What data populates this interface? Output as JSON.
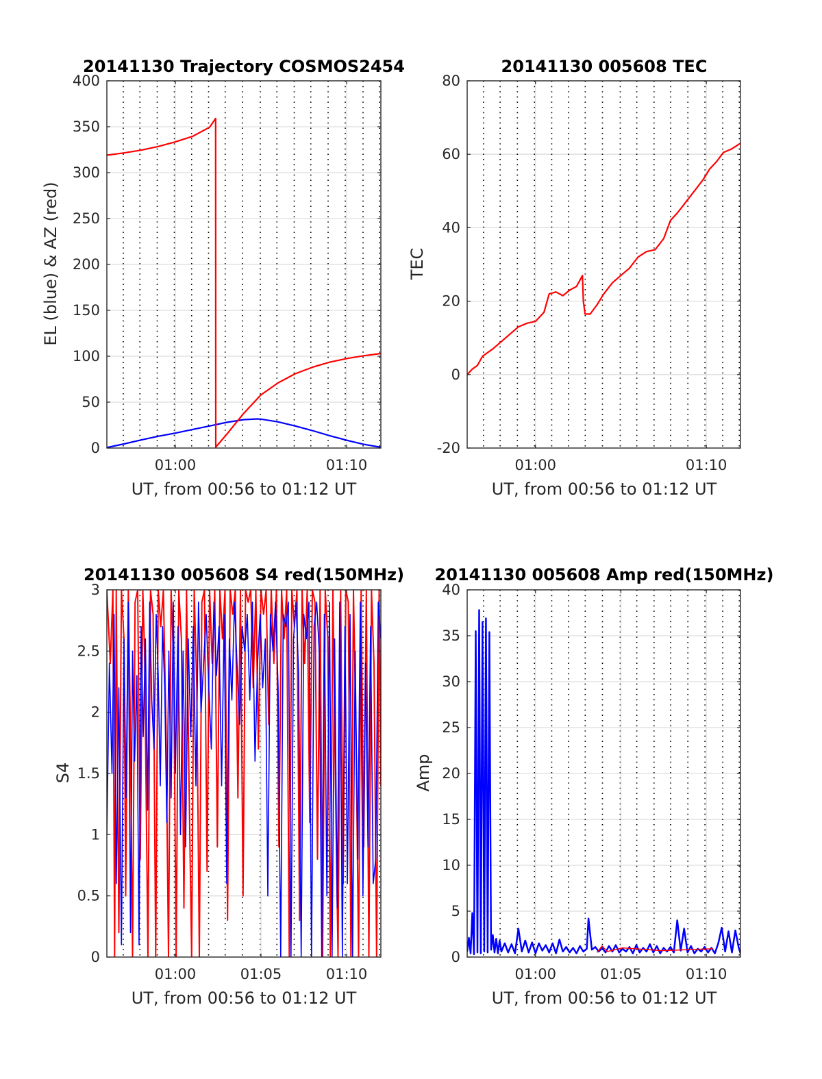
{
  "figure_id": "figure-1",
  "chart_data": [
    {
      "id": "trajectory",
      "type": "line",
      "title": "20141130 Trajectory COSMOS2454",
      "xlabel": "UT, from 00:56 to 01:12 UT",
      "ylabel": "EL (blue) & AZ (red)",
      "x_unit": "minutes after 00:00 UT",
      "xlim": [
        56,
        72
      ],
      "ylim": [
        0,
        400
      ],
      "yticks": [
        0,
        50,
        100,
        150,
        200,
        250,
        300,
        350,
        400
      ],
      "ytick_labels": [
        "0",
        "50",
        "100",
        "150",
        "200",
        "250",
        "300",
        "350",
        "400"
      ],
      "xticks": [
        60,
        70
      ],
      "xtick_labels": [
        "01:00",
        "01:10"
      ],
      "dotted_xgrid": [
        56.96,
        57.93,
        58.94,
        59.94,
        60.95,
        61.94,
        62.91,
        63.92,
        64.96,
        65.93,
        66.94,
        67.91,
        68.92,
        69.92,
        70.96,
        71.93
      ],
      "grid": true,
      "series": [
        {
          "name": "EL (blue)",
          "color": "#0000ff",
          "x": [
            56,
            57,
            58,
            59,
            60,
            61,
            62,
            63,
            64,
            64.8,
            65,
            66,
            67,
            68,
            69,
            70,
            71,
            72
          ],
          "y": [
            0.5,
            4.5,
            8.8,
            12.8,
            16.3,
            20.2,
            24,
            28,
            31,
            31.7,
            31.5,
            28.5,
            24,
            19,
            13.5,
            8.5,
            4,
            0.8
          ]
        },
        {
          "name": "AZ (red)",
          "color": "#ff0000",
          "x": [
            56,
            57,
            58,
            59,
            60,
            61,
            62,
            62.35,
            62.36,
            63,
            64,
            65,
            66,
            67,
            68,
            69,
            70,
            71,
            72
          ],
          "y": [
            319,
            321.5,
            324.5,
            328.5,
            333.5,
            339.5,
            349.5,
            359,
            1,
            15,
            38,
            58,
            71,
            81,
            88,
            93.5,
            97.5,
            100.5,
            103
          ]
        }
      ]
    },
    {
      "id": "tec",
      "type": "line",
      "title": "20141130 005608 TEC",
      "xlabel": "UT, from 00:56 to 01:12 UT",
      "ylabel": "TEC",
      "x_unit": "minutes after 00:00 UT",
      "xlim": [
        56,
        72
      ],
      "ylim": [
        -20,
        80
      ],
      "yticks": [
        -20,
        0,
        20,
        40,
        60,
        80
      ],
      "ytick_labels": [
        "-20",
        "0",
        "20",
        "40",
        "60",
        "80"
      ],
      "xticks": [
        60,
        70
      ],
      "xtick_labels": [
        "01:00",
        "01:10"
      ],
      "dotted_xgrid": [
        56.96,
        57.93,
        58.94,
        59.94,
        60.95,
        61.94,
        62.91,
        63.92,
        64.96,
        65.93,
        66.94,
        67.91,
        68.92,
        69.92,
        70.96,
        71.93
      ],
      "grid": true,
      "series": [
        {
          "name": "TEC",
          "color": "#ff0000",
          "x": [
            56,
            56.3,
            56.6,
            56.9,
            57.5,
            58,
            58.5,
            59,
            59.5,
            60,
            60.5,
            60.8,
            61.2,
            61.6,
            62,
            62.4,
            62.75,
            62.8,
            62.9,
            63.2,
            63.6,
            64,
            64.5,
            65,
            65.5,
            66,
            66.5,
            67,
            67.5,
            67.9,
            68.3,
            68.8,
            69.3,
            69.8,
            70.2,
            70.6,
            71,
            71.5,
            72
          ],
          "y": [
            0,
            1.5,
            2.5,
            5,
            7,
            9,
            11,
            13,
            14,
            14.5,
            17,
            22,
            22.5,
            21.5,
            23,
            24,
            27,
            20,
            16.5,
            16.5,
            19,
            22,
            25,
            27,
            29,
            32,
            33.5,
            34,
            37,
            42,
            44,
            47,
            50,
            53,
            56,
            58,
            60.5,
            61.5,
            63
          ]
        }
      ]
    },
    {
      "id": "s4",
      "type": "line",
      "title": "20141130 005608 S4 red(150MHz)",
      "xlabel": "UT, from 00:56 to 01:12 UT",
      "ylabel": "S4",
      "x_unit": "minutes after 00:00 UT",
      "xlim": [
        56,
        72
      ],
      "ylim": [
        0,
        3
      ],
      "yticks": [
        0,
        0.5,
        1,
        1.5,
        2,
        2.5,
        3
      ],
      "ytick_labels": [
        "0",
        "0.5",
        "1",
        "1.5",
        "2",
        "2.5",
        "3"
      ],
      "xticks": [
        60,
        65,
        70
      ],
      "xtick_labels": [
        "01:00",
        "01:05",
        "01:10"
      ],
      "dotted_xgrid": [
        56.96,
        57.93,
        58.94,
        59.94,
        60.95,
        61.94,
        62.91,
        63.92,
        64.96,
        65.93,
        66.94,
        67.91,
        68.92,
        69.92,
        70.96,
        71.93
      ],
      "grid": true,
      "series": [
        {
          "name": "red (150MHz)",
          "color": "#ff0000",
          "x": [
            56,
            56.2,
            56.35,
            56.45,
            56.55,
            56.7,
            56.85,
            57,
            57.1,
            57.25,
            57.35,
            57.5,
            57.65,
            57.8,
            57.95,
            58.1,
            58.2,
            58.4,
            58.55,
            58.7,
            58.85,
            59,
            59.15,
            59.3,
            59.45,
            59.6,
            59.75,
            59.9,
            60.05,
            60.2,
            60.35,
            60.5,
            60.65,
            60.8,
            60.95,
            61.1,
            61.25,
            61.4,
            61.55,
            61.7,
            61.85,
            62,
            62.15,
            62.3,
            62.45,
            62.6,
            62.75,
            62.9,
            63.05,
            63.2,
            63.35,
            63.5,
            63.65,
            63.8,
            63.95,
            64.1,
            64.25,
            64.4,
            64.55,
            64.7,
            64.85,
            65,
            65.15,
            65.3,
            65.45,
            65.6,
            65.75,
            65.9,
            66.05,
            66.2,
            66.35,
            66.5,
            66.65,
            66.8,
            66.95,
            67.1,
            67.25,
            67.4,
            67.55,
            67.7,
            67.85,
            68,
            68.15,
            68.3,
            68.45,
            68.6,
            68.75,
            68.9,
            69.05,
            69.2,
            69.35,
            69.5,
            69.65,
            69.8,
            69.95,
            70.1,
            70.25,
            70.4,
            70.55,
            70.7,
            70.85,
            71,
            71.15,
            71.3,
            71.45,
            71.6,
            71.75,
            71.9,
            72
          ],
          "y": [
            3,
            2.4,
            3,
            0,
            3,
            0.2,
            3,
            2.6,
            0.5,
            3,
            2.1,
            0,
            2.9,
            3,
            0.8,
            3,
            2.5,
            0,
            3,
            2.8,
            0,
            3,
            2.7,
            3,
            1.9,
            0,
            3,
            2.4,
            0,
            3,
            2.6,
            0.4,
            3,
            1.4,
            0,
            3,
            2.2,
            0,
            2.9,
            3,
            0.7,
            3,
            2.4,
            3,
            0.9,
            3,
            2.6,
            3,
            0.3,
            3,
            2.8,
            3,
            1.3,
            3,
            0.5,
            3,
            2.9,
            3,
            2.2,
            3,
            1.7,
            3,
            2.8,
            3,
            1.9,
            3,
            2.4,
            3,
            0.9,
            3,
            2.6,
            3,
            0,
            3,
            2.7,
            3,
            0.3,
            3,
            2.4,
            3,
            1.1,
            3,
            2.9,
            0.8,
            3,
            0,
            3,
            2.6,
            0,
            3,
            1.4,
            0,
            3,
            0.6,
            3,
            2.9,
            0,
            3,
            1.8,
            0,
            3,
            0.9,
            3,
            0,
            3,
            2.4,
            0,
            3,
            1.4
          ],
          "width": 2
        },
        {
          "name": "blue",
          "color": "#0000ff",
          "x": [
            56,
            56.15,
            56.3,
            56.42,
            56.55,
            56.7,
            56.85,
            57,
            57.12,
            57.25,
            57.38,
            57.5,
            57.62,
            57.75,
            57.88,
            58,
            58.12,
            58.25,
            58.38,
            58.5,
            58.62,
            58.75,
            58.88,
            59,
            59.12,
            59.25,
            59.38,
            59.5,
            59.62,
            59.75,
            59.88,
            60,
            60.15,
            60.3,
            60.45,
            60.6,
            60.75,
            60.9,
            61.05,
            61.2,
            61.35,
            61.5,
            61.65,
            61.8,
            61.95,
            62.1,
            62.25,
            62.4,
            62.55,
            62.7,
            62.85,
            63,
            63.15,
            63.3,
            63.45,
            63.6,
            63.75,
            63.9,
            64.05,
            64.2,
            64.35,
            64.5,
            64.65,
            64.8,
            64.95,
            65.1,
            65.25,
            65.4,
            65.55,
            65.7,
            65.85,
            66,
            66.15,
            66.3,
            66.45,
            66.6,
            66.75,
            66.9,
            67.05,
            67.2,
            67.35,
            67.5,
            67.65,
            67.8,
            67.95,
            68.1,
            68.25,
            68.4,
            68.55,
            68.7,
            68.85,
            69,
            69.15,
            69.3,
            69.45,
            69.6,
            69.75,
            69.9,
            70.05,
            70.2,
            70.35,
            70.5,
            70.65,
            70.8,
            70.95,
            71.1,
            71.25,
            71.4,
            71.55,
            71.7,
            71.85,
            72
          ],
          "y": [
            1,
            2.4,
            1.5,
            2.8,
            0.6,
            2.2,
            0.1,
            2.6,
            1.3,
            2.9,
            0.2,
            2.5,
            1.6,
            2.3,
            0.1,
            2.7,
            1.8,
            2.6,
            1.2,
            2.9,
            2.1,
            1.7,
            2.8,
            2.3,
            1.4,
            2.7,
            2.2,
            1.1,
            2.5,
            1.3,
            2.9,
            1.5,
            2.7,
            1.0,
            2.5,
            0.9,
            2.6,
            1.8,
            2.7,
            1.4,
            2.9,
            2.0,
            2.4,
            2.8,
            2.2,
            1.7,
            2.9,
            2.3,
            2.7,
            1.4,
            2.8,
            0.6,
            2.6,
            2.1,
            2.9,
            2.4,
            1.9,
            2.7,
            2.5,
            2.8,
            2.1,
            2.9,
            1.6,
            2.4,
            2.8,
            2.2,
            2.6,
            0.5,
            2.8,
            2.5,
            2.9,
            2.2,
            0,
            2.8,
            2.7,
            2.9,
            0,
            2.6,
            2.9,
            2.3,
            0,
            2.8,
            2.6,
            2.9,
            0,
            2.7,
            2.9,
            2.5,
            0,
            2.8,
            0.5,
            2.9,
            0,
            2.6,
            0.4,
            2.9,
            0,
            2.7,
            0.6,
            2.8,
            0,
            2.5,
            0.8,
            2.9,
            0.5,
            2.4,
            0.9,
            2.7,
            0.6,
            0.8,
            2.9,
            2.6
          ],
          "width": 1.6
        }
      ]
    },
    {
      "id": "amp",
      "type": "line",
      "title": "20141130 005608 Amp red(150MHz)",
      "xlabel": "UT, from 00:56 to 01:12 UT",
      "ylabel": "Amp",
      "x_unit": "minutes after 00:00 UT",
      "xlim": [
        56,
        72
      ],
      "ylim": [
        0,
        40
      ],
      "yticks": [
        0,
        5,
        10,
        15,
        20,
        25,
        30,
        35,
        40
      ],
      "ytick_labels": [
        "0",
        "5",
        "10",
        "15",
        "20",
        "25",
        "30",
        "35",
        "40"
      ],
      "xticks": [
        60,
        65,
        70
      ],
      "xtick_labels": [
        "01:00",
        "01:05",
        "01:10"
      ],
      "dotted_xgrid": [
        56.96,
        57.93,
        58.94,
        59.94,
        60.95,
        61.94,
        62.91,
        63.92,
        64.96,
        65.93,
        66.94,
        67.91,
        68.92,
        69.92,
        70.96,
        71.93
      ],
      "grid": true,
      "series": [
        {
          "name": "blue",
          "color": "#0000ff",
          "x": [
            56,
            56.1,
            56.2,
            56.3,
            56.4,
            56.5,
            56.6,
            56.7,
            56.8,
            56.9,
            57,
            57.1,
            57.2,
            57.3,
            57.4,
            57.5,
            57.6,
            57.7,
            57.8,
            57.9,
            58,
            58.2,
            58.4,
            58.6,
            58.8,
            59,
            59.2,
            59.4,
            59.6,
            59.8,
            60,
            60.2,
            60.4,
            60.6,
            60.8,
            61,
            61.2,
            61.4,
            61.6,
            61.8,
            62,
            62.2,
            62.4,
            62.6,
            62.8,
            63,
            63.1,
            63.3,
            63.5,
            63.7,
            63.9,
            64.1,
            64.3,
            64.5,
            64.7,
            64.9,
            65.1,
            65.3,
            65.5,
            65.7,
            65.9,
            66.1,
            66.3,
            66.5,
            66.7,
            66.9,
            67.1,
            67.3,
            67.5,
            67.7,
            67.9,
            68.1,
            68.3,
            68.5,
            68.7,
            68.9,
            69.1,
            69.3,
            69.5,
            69.7,
            69.9,
            70.1,
            70.3,
            70.5,
            70.7,
            70.9,
            71.1,
            71.3,
            71.5,
            71.7,
            71.9,
            72
          ],
          "y": [
            0.6,
            2.1,
            0.4,
            4.8,
            0.3,
            35.5,
            0.5,
            37.8,
            0.4,
            36.5,
            0.6,
            36.9,
            0.5,
            35.4,
            0.8,
            2.4,
            0.5,
            2.0,
            0.4,
            1.8,
            0.6,
            1.5,
            0.5,
            1.4,
            0.4,
            3.1,
            0.6,
            1.8,
            0.5,
            1.6,
            0.4,
            1.5,
            0.7,
            1.3,
            0.5,
            1.5,
            0.4,
            1.9,
            0.6,
            1.1,
            0.5,
            1.0,
            0.4,
            1.2,
            0.6,
            0.9,
            4.2,
            0.8,
            1.1,
            0.6,
            1.0,
            0.5,
            1.2,
            0.6,
            1.3,
            0.5,
            0.9,
            0.6,
            1.1,
            0.4,
            1.3,
            0.5,
            1.0,
            0.6,
            1.4,
            0.5,
            1.2,
            0.4,
            1.0,
            0.6,
            1.1,
            0.5,
            4.0,
            0.7,
            3.1,
            0.5,
            1.2,
            0.4,
            0.9,
            0.6,
            1.1,
            0.5,
            1.0,
            0.4,
            1.5,
            3.2,
            0.6,
            2.8,
            0.5,
            2.9,
            1.0,
            0.4
          ],
          "width": 2.5
        },
        {
          "name": "red (150MHz)",
          "color": "#ff0000",
          "x": [
            63.6,
            63.9,
            64.2,
            65.1,
            67.4,
            70.4
          ],
          "y": [
            0.5,
            1.2,
            0.6,
            1.0,
            0.7,
            0.9
          ],
          "width": 1.5
        }
      ]
    }
  ]
}
